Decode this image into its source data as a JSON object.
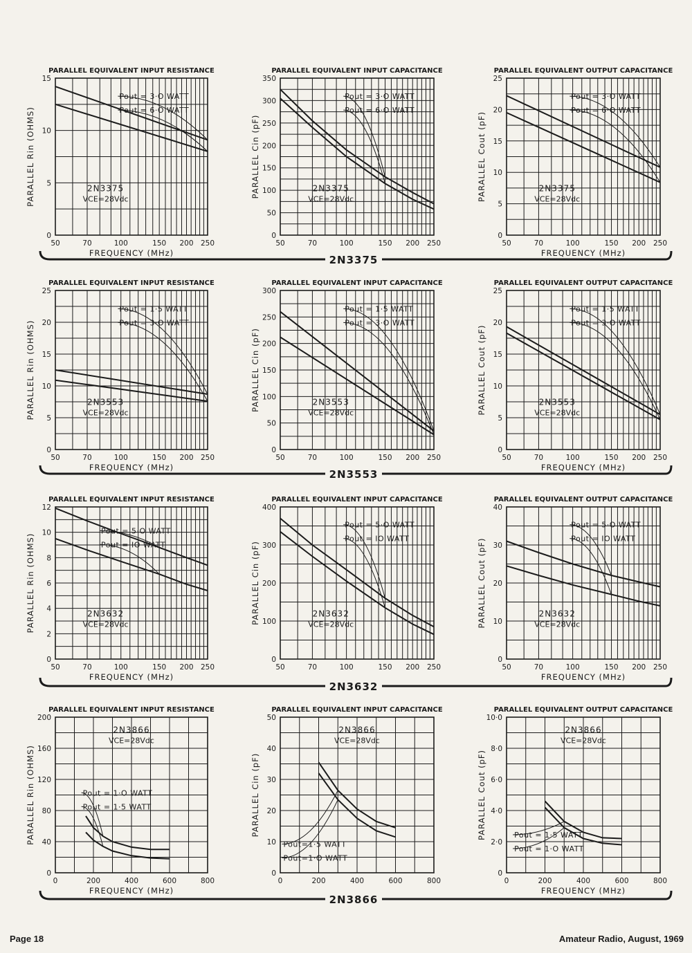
{
  "page": {
    "number": "Page 18",
    "publication": "Amateur Radio, August, 1969"
  },
  "colors": {
    "ink": "#1b1b1b",
    "paper": "#f4f2ec"
  },
  "section_labels": [
    "2N3375",
    "2N3553",
    "2N3632",
    "2N3866"
  ],
  "chart_data": [
    {
      "type": "line",
      "title": "PARALLEL EQUIVALENT INPUT RESISTANCE",
      "ylabel": "PARALLEL Rin (OHMS)",
      "xlabel": "FREQUENCY (MHz)",
      "xscale": "log",
      "xlim": [
        50,
        250
      ],
      "ylim": [
        0,
        15
      ],
      "xticks": [
        50,
        70,
        100,
        150,
        200,
        250
      ],
      "yticks": [
        0,
        5,
        10,
        15
      ],
      "device": "2N3375",
      "vce": "VCE=28Vdc",
      "legend": [
        "Pout = 3·O WATT",
        "Pout = 6·O WATT"
      ],
      "series": [
        {
          "name": "Pout = 3·O WATT",
          "x": [
            50,
            250
          ],
          "y": [
            14.2,
            9.1
          ]
        },
        {
          "name": "Pout = 6·O WATT",
          "x": [
            50,
            250
          ],
          "y": [
            12.5,
            8.0
          ]
        }
      ]
    },
    {
      "type": "line",
      "title": "PARALLEL EQUIVALENT INPUT CAPACITANCE",
      "ylabel": "PARALLEL Cin (pF)",
      "xlabel": "",
      "xscale": "log",
      "xlim": [
        50,
        250
      ],
      "ylim": [
        0,
        350
      ],
      "xticks": [
        50,
        70,
        100,
        150,
        200,
        250
      ],
      "yticks": [
        0,
        50,
        100,
        150,
        200,
        250,
        300,
        350
      ],
      "device": "2N3375",
      "vce": "VCE=28Vdc",
      "legend": [
        "Pout = 3·O WATT",
        "Pout = 6·O WATT"
      ],
      "series": [
        {
          "name": "Pout = 3·O WATT",
          "x": [
            50,
            70,
            100,
            150,
            200,
            250
          ],
          "y": [
            325,
            255,
            190,
            130,
            95,
            70
          ]
        },
        {
          "name": "Pout = 6·O WATT",
          "x": [
            50,
            70,
            100,
            150,
            200,
            250
          ],
          "y": [
            305,
            240,
            175,
            115,
            80,
            58
          ]
        }
      ]
    },
    {
      "type": "line",
      "title": "PARALLEL EQUIVALENT OUTPUT CAPACITANCE",
      "ylabel": "PARALLEL Cout (pF)",
      "xlabel": "FREQUENCY (MHz)",
      "xscale": "log",
      "xlim": [
        50,
        250
      ],
      "ylim": [
        0,
        25
      ],
      "xticks": [
        50,
        70,
        100,
        150,
        200,
        250
      ],
      "yticks": [
        0,
        5,
        10,
        15,
        20,
        25
      ],
      "device": "2N3375",
      "vce": "VCE=28Vdc",
      "legend": [
        "Pout = 3·O WATT",
        "Pout = 6·O WATT"
      ],
      "series": [
        {
          "name": "Pout = 3·O WATT",
          "x": [
            50,
            250
          ],
          "y": [
            22.2,
            10.8
          ]
        },
        {
          "name": "Pout = 6·O WATT",
          "x": [
            50,
            250
          ],
          "y": [
            19.5,
            8.4
          ]
        }
      ]
    },
    {
      "type": "line",
      "title": "PARALLEL EQUIVALENT INPUT RESISTANCE",
      "ylabel": "PARALLEL Rin (OHMS)",
      "xlabel": "FREQUENCY (MHz)",
      "xscale": "log",
      "xlim": [
        50,
        250
      ],
      "ylim": [
        0,
        25
      ],
      "xticks": [
        50,
        70,
        100,
        150,
        200,
        250
      ],
      "yticks": [
        0,
        5,
        10,
        15,
        20,
        25
      ],
      "device": "2N3553",
      "vce": "VCE=28Vdc",
      "legend": [
        "Pout = 1·5 WATT",
        "Pout = 3·O WATT"
      ],
      "series": [
        {
          "name": "Pout = 1·5 WATT",
          "x": [
            50,
            250
          ],
          "y": [
            12.5,
            8.7
          ]
        },
        {
          "name": "Pout = 3·O WATT",
          "x": [
            50,
            250
          ],
          "y": [
            10.9,
            7.6
          ]
        }
      ]
    },
    {
      "type": "line",
      "title": "PARALLEL EQUIVALENT INPUT CAPACITANCE",
      "ylabel": "PARALLEL Cin (pF)",
      "xlabel": "",
      "xscale": "log",
      "xlim": [
        50,
        250
      ],
      "ylim": [
        0,
        300
      ],
      "xticks": [
        50,
        70,
        100,
        150,
        200,
        250
      ],
      "yticks": [
        0,
        50,
        100,
        150,
        200,
        250,
        300
      ],
      "device": "2N3553",
      "vce": "VCE=28Vdc",
      "legend": [
        "Pout = 1·5 WATT",
        "Pout = 3·O WATT"
      ],
      "series": [
        {
          "name": "Pout = 1·5 WATT",
          "x": [
            50,
            250
          ],
          "y": [
            260,
            35
          ]
        },
        {
          "name": "Pout = 3·O WATT",
          "x": [
            50,
            250
          ],
          "y": [
            212,
            28
          ]
        }
      ]
    },
    {
      "type": "line",
      "title": "PARALLEL EQUIVALENT OUTPUT CAPACITANCE",
      "ylabel": "PARALLEL Cout (pF)",
      "xlabel": "FREQUENCY (MHz)",
      "xscale": "log",
      "xlim": [
        50,
        250
      ],
      "ylim": [
        0,
        25
      ],
      "xticks": [
        50,
        70,
        100,
        150,
        200,
        250
      ],
      "yticks": [
        0,
        5,
        10,
        15,
        20,
        25
      ],
      "device": "2N3553",
      "vce": "VCE=28Vdc",
      "legend": [
        "Pout = 1·5 WATT",
        "Pout = 3·O WATT"
      ],
      "series": [
        {
          "name": "Pout = 1·5 WATT",
          "x": [
            50,
            250
          ],
          "y": [
            19.3,
            5.5
          ]
        },
        {
          "name": "Pout = 3·O WATT",
          "x": [
            50,
            250
          ],
          "y": [
            18.3,
            4.7
          ]
        }
      ]
    },
    {
      "type": "line",
      "title": "PARALLEL EQUIVALENT INPUT RESISTANCE",
      "ylabel": "PARALLEL Rin (OHMS)",
      "xlabel": "FREQUENCY (MHz)",
      "xscale": "log",
      "xlim": [
        50,
        250
      ],
      "ylim": [
        0,
        12
      ],
      "xticks": [
        50,
        70,
        100,
        150,
        200,
        250
      ],
      "yticks": [
        0,
        2,
        4,
        6,
        8,
        10,
        12
      ],
      "device": "2N3632",
      "vce": "VCE=28Vdc",
      "legend": [
        "Pout = 5·O WATT",
        "Pout = IO WATT"
      ],
      "series": [
        {
          "name": "Pout = 5·O WATT",
          "x": [
            50,
            70,
            100,
            150,
            200,
            250
          ],
          "y": [
            11.9,
            10.9,
            9.9,
            8.8,
            8.0,
            7.4
          ]
        },
        {
          "name": "Pout = IO WATT",
          "x": [
            50,
            70,
            100,
            150,
            200,
            250
          ],
          "y": [
            9.5,
            8.6,
            7.7,
            6.7,
            5.9,
            5.4
          ]
        }
      ]
    },
    {
      "type": "line",
      "title": "PARALLEL EQUIVALENT INPUT CAPACITANCE",
      "ylabel": "PARALLEL Cin (pF)",
      "xlabel": "",
      "xscale": "log",
      "xlim": [
        50,
        250
      ],
      "ylim": [
        0,
        400
      ],
      "xticks": [
        50,
        70,
        100,
        150,
        200,
        250
      ],
      "yticks": [
        0,
        100,
        200,
        300,
        400
      ],
      "device": "2N3632",
      "vce": "VCE=28Vdc",
      "legend": [
        "Pout = 5·O WATT",
        "Pout = IO WATT"
      ],
      "series": [
        {
          "name": "Pout = 5·O WATT",
          "x": [
            50,
            70,
            100,
            150,
            200,
            250
          ],
          "y": [
            370,
            300,
            235,
            160,
            115,
            85
          ]
        },
        {
          "name": "Pout = IO WATT",
          "x": [
            50,
            70,
            100,
            150,
            200,
            250
          ],
          "y": [
            335,
            270,
            205,
            135,
            92,
            65
          ]
        }
      ]
    },
    {
      "type": "line",
      "title": "PARALLEL EQUIVALENT OUTPUT CAPACITANCE",
      "ylabel": "PARALLEL Cout (pF)",
      "xlabel": "FREQUENCY (MHz)",
      "xscale": "log",
      "xlim": [
        50,
        250
      ],
      "ylim": [
        0,
        40
      ],
      "xticks": [
        50,
        70,
        100,
        150,
        200,
        250
      ],
      "yticks": [
        0,
        10,
        20,
        30,
        40
      ],
      "device": "2N3632",
      "vce": "VCE=28Vdc",
      "legend": [
        "Pout = 5·O WATT",
        "Pout = IO WATT"
      ],
      "series": [
        {
          "name": "Pout = 5·O WATT",
          "x": [
            50,
            70,
            100,
            150,
            200,
            250
          ],
          "y": [
            31,
            28,
            25,
            22,
            20.3,
            19
          ]
        },
        {
          "name": "Pout = IO WATT",
          "x": [
            50,
            70,
            100,
            150,
            200,
            250
          ],
          "y": [
            24.5,
            22,
            19.5,
            17,
            15.2,
            14
          ]
        }
      ]
    },
    {
      "type": "line",
      "title": "PARALLEL EQUIVALENT INPUT RESISTANCE",
      "ylabel": "PARALLEL Rin (OHMS)",
      "xlabel": "FREQUENCY (MHz)",
      "xscale": "linear",
      "xlim": [
        0,
        800
      ],
      "ylim": [
        0,
        200
      ],
      "xticks": [
        0,
        200,
        400,
        600,
        800
      ],
      "yticks": [
        0,
        40,
        80,
        120,
        160,
        200
      ],
      "device": "2N3866",
      "vce": "VCE=28Vdc",
      "legend": [
        "Pout = 1·O WATT",
        "Pout = 1·5 WATT"
      ],
      "series": [
        {
          "name": "Pout = 1·O WATT",
          "x": [
            160,
            200,
            250,
            300,
            400,
            500,
            600
          ],
          "y": [
            73,
            58,
            47,
            40,
            33,
            30,
            30
          ]
        },
        {
          "name": "Pout = 1·5 WATT",
          "x": [
            160,
            200,
            250,
            300,
            400,
            500,
            600
          ],
          "y": [
            52,
            42,
            34,
            28,
            22,
            19,
            18
          ]
        }
      ]
    },
    {
      "type": "line",
      "title": "PARALLEL EQUIVALENT INPUT CAPACITANCE",
      "ylabel": "PARALLEL Cin (pF)",
      "xlabel": "",
      "xscale": "linear",
      "xlim": [
        0,
        800
      ],
      "ylim": [
        0,
        50
      ],
      "xticks": [
        0,
        200,
        400,
        600,
        800
      ],
      "yticks": [
        0,
        10,
        20,
        30,
        40,
        50
      ],
      "device": "2N3866",
      "vce": "VCE=28Vdc",
      "legend": [
        "Pout=1·5 WATT",
        "Pout=1·O WATT"
      ],
      "series": [
        {
          "name": "Pout=1·5 WATT",
          "x": [
            200,
            300,
            400,
            500,
            600
          ],
          "y": [
            35.5,
            26.5,
            20.5,
            16.5,
            14.5
          ]
        },
        {
          "name": "Pout=1·O WATT",
          "x": [
            200,
            300,
            400,
            500,
            600
          ],
          "y": [
            32,
            23.5,
            17.5,
            13.5,
            11.5
          ]
        }
      ]
    },
    {
      "type": "line",
      "title": "PARALLEL EQUIVALENT OUTPUT CAPACITANCE",
      "ylabel": "PARALLEL Cout (pF)",
      "xlabel": "FREQUENCY (MHz)",
      "xscale": "linear",
      "xlim": [
        0,
        800
      ],
      "ylim": [
        0,
        10
      ],
      "xticks": [
        0,
        200,
        400,
        600,
        800
      ],
      "yticks": [
        0,
        2,
        4,
        6,
        8,
        10
      ],
      "yticklabels": [
        "0",
        "2·0",
        "4·0",
        "6·0",
        "8·0",
        "10·0"
      ],
      "device": "2N3866",
      "vce": "VCE=28Vdc",
      "legend": [
        "Pout = 1·5 WATT",
        "Pout = 1·O WATT"
      ],
      "series": [
        {
          "name": "Pout = 1·5 WATT",
          "x": [
            200,
            300,
            400,
            500,
            600
          ],
          "y": [
            4.6,
            3.3,
            2.6,
            2.25,
            2.2
          ]
        },
        {
          "name": "Pout = 1·O WATT",
          "x": [
            200,
            300,
            400,
            500,
            600
          ],
          "y": [
            4.2,
            2.9,
            2.2,
            1.9,
            1.8
          ]
        }
      ]
    }
  ]
}
